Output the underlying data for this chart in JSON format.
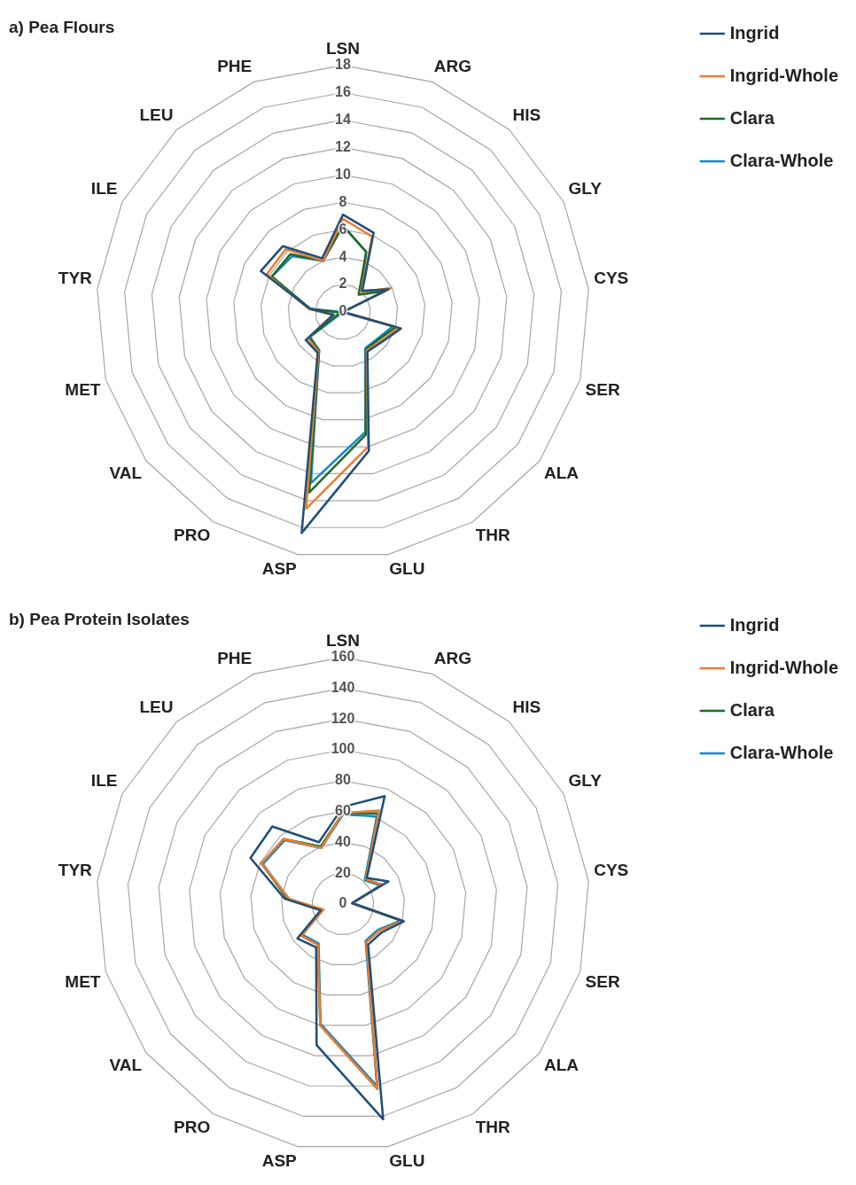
{
  "chart_data": [
    {
      "type": "radar",
      "title": "a) Pea Flours",
      "categories": [
        "LSN",
        "ARG",
        "HIS",
        "GLY",
        "CYS",
        "SER",
        "ALA",
        "THR",
        "GLU",
        "ASP",
        "PRO",
        "VAL",
        "MET",
        "TYR",
        "ILE",
        "LEU",
        "PHE"
      ],
      "series": [
        {
          "name": "Ingrid",
          "color": "#1f4e79",
          "values": [
            7.1,
            6.2,
            2.1,
            3.7,
            0,
            4.4,
            3.6,
            3.4,
            10.3,
            16.4,
            3.5,
            3.4,
            0.7,
            2.4,
            6.7,
            6.5,
            4.2
          ]
        },
        {
          "name": "Ingrid-Whole",
          "color": "#ed7d31",
          "values": [
            6.8,
            5.9,
            2.0,
            3.9,
            0,
            4.2,
            3.5,
            3.3,
            10.0,
            14.6,
            3.4,
            3.2,
            0.8,
            2.5,
            6.2,
            6.2,
            4.0
          ]
        },
        {
          "name": "Clara",
          "color": "#1e6b24",
          "values": [
            6.3,
            4.7,
            1.7,
            3.4,
            0,
            4.0,
            3.3,
            3.2,
            9.1,
            13.4,
            3.3,
            3.1,
            0.2,
            2.4,
            5.8,
            5.7,
            4.0
          ]
        },
        {
          "name": "Clara-Whole",
          "color": "#0f87d0",
          "values": [
            6.3,
            4.7,
            2.0,
            3.5,
            0,
            3.8,
            3.2,
            3.1,
            8.9,
            12.7,
            3.3,
            3.0,
            0,
            2.4,
            5.8,
            5.5,
            4.0
          ]
        }
      ],
      "ylim": [
        0,
        18
      ],
      "yticks": [
        0,
        2,
        4,
        6,
        8,
        10,
        12,
        14,
        16,
        18
      ],
      "grid": true,
      "legend": "top right",
      "marker": "none"
    },
    {
      "type": "radar",
      "title": "b) Pea Protein Isolates",
      "categories": [
        "LSN",
        "ARG",
        "HIS",
        "GLY",
        "CYS",
        "SER",
        "ALA",
        "THR",
        "GLU",
        "ASP",
        "PRO",
        "VAL",
        "MET",
        "TYR",
        "ILE",
        "LEU",
        "PHE"
      ],
      "series": [
        {
          "name": "Ingrid",
          "color": "#1f4e79",
          "values": [
            63,
            75,
            23,
            33,
            6,
            41,
            31,
            31,
            142,
            93,
            33,
            37,
            15,
            38,
            67,
            68,
            43
          ]
        },
        {
          "name": "Ingrid-Whole",
          "color": "#ed7d31",
          "values": [
            59,
            65,
            22,
            28,
            6,
            40,
            29,
            29,
            122,
            80,
            31,
            34,
            13,
            35,
            59,
            57,
            39
          ]
        },
        {
          "name": "Clara",
          "color": "#1e6b24",
          "values": [
            59,
            63,
            22,
            28,
            6,
            40,
            29,
            29,
            122,
            80,
            31,
            34,
            14,
            36,
            59,
            57,
            40
          ]
        },
        {
          "name": "Clara-Whole",
          "color": "#0f87d0",
          "values": [
            58,
            61,
            21,
            27,
            6,
            39,
            28,
            28,
            120,
            79,
            30,
            33,
            14,
            35,
            58,
            56,
            39
          ]
        }
      ],
      "ylim": [
        0,
        160
      ],
      "yticks": [
        0,
        20,
        40,
        60,
        80,
        100,
        120,
        140,
        160
      ],
      "grid": true,
      "legend": "top right",
      "marker": "none"
    }
  ]
}
